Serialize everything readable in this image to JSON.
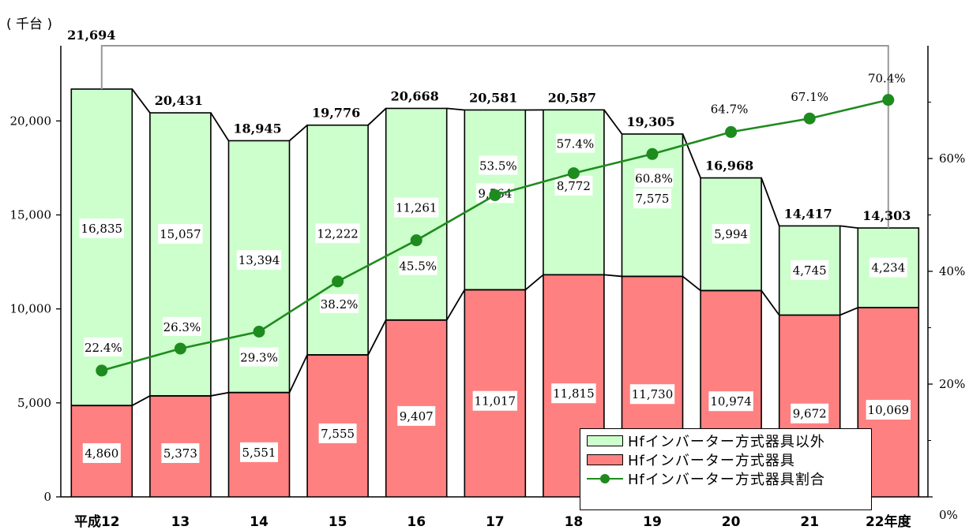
{
  "unit_label": "( 千台 )",
  "colors": {
    "other": "#ccffcc",
    "hf": "#ff8080",
    "ratio_line": "#1e8b1e",
    "axis": "#000000",
    "bracket": "#999999"
  },
  "legend": {
    "other": "Hfインバーター方式器具以外",
    "hf": "Hfインバーター方式器具",
    "ratio": "Hfインバーター方式器具割合"
  },
  "chart_data": {
    "type": "bar",
    "stacked": true,
    "categories": [
      "平成12",
      "13",
      "14",
      "15",
      "16",
      "17",
      "18",
      "19",
      "20",
      "21",
      "22年度"
    ],
    "series": [
      {
        "name": "Hfインバーター方式器具",
        "values": [
          4860,
          5373,
          5551,
          7555,
          9407,
          11017,
          11815,
          11730,
          10974,
          9672,
          10069
        ],
        "labels": [
          "4,860",
          "5,373",
          "5,551",
          "7,555",
          "9,407",
          "11,017",
          "11,815",
          "11,730",
          "10,974",
          "9,672",
          "10,069"
        ]
      },
      {
        "name": "Hfインバーター方式器具以外",
        "values": [
          16835,
          15057,
          13394,
          12222,
          11261,
          9564,
          8772,
          7575,
          5994,
          4745,
          4234
        ],
        "labels": [
          "16,835",
          "15,057",
          "13,394",
          "12,222",
          "11,261",
          "9,564",
          "8,772",
          "7,575",
          "5,994",
          "4,745",
          "4,234"
        ]
      }
    ],
    "totals": [
      21694,
      20431,
      18945,
      19776,
      20668,
      20581,
      20587,
      19305,
      16968,
      14417,
      14303
    ],
    "total_labels": [
      "21,694",
      "20,431",
      "18,945",
      "19,776",
      "20,668",
      "20,581",
      "20,587",
      "19,305",
      "16,968",
      "14,417",
      "14,303"
    ],
    "line": {
      "name": "Hfインバーター方式器具割合",
      "values": [
        22.4,
        26.3,
        29.3,
        38.2,
        45.5,
        53.5,
        57.4,
        60.8,
        64.7,
        67.1,
        70.4
      ],
      "labels": [
        "22.4%",
        "26.3%",
        "29.3%",
        "38.2%",
        "45.5%",
        "53.5%",
        "57.4%",
        "60.8%",
        "64.7%",
        "67.1%",
        "70.4%"
      ],
      "axis": "right"
    },
    "ylim": [
      0,
      24000
    ],
    "yticks": [
      0,
      5000,
      10000,
      15000,
      20000
    ],
    "ytick_labels": [
      "0",
      "5,000",
      "10,000",
      "15,000",
      "20,000"
    ],
    "y2lim": [
      0,
      80
    ],
    "y2ticks": [
      0,
      20,
      40,
      60
    ],
    "y2tick_labels": [
      "0%",
      "20%",
      "40%",
      "60%"
    ],
    "grid": false,
    "legend_position": "bottom-right"
  }
}
